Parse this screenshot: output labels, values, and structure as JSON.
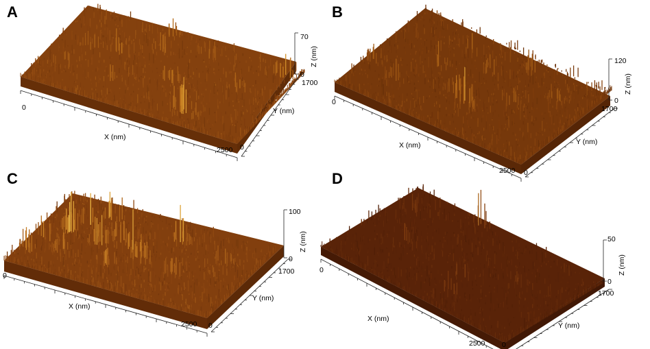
{
  "panels": [
    {
      "label": "A",
      "z_max": "70",
      "z_min": "0",
      "z_label": "Z (nm)",
      "x_label": "X (nm)",
      "x_start": "0",
      "x_end": "2500",
      "y_label": "Y (nm)",
      "y_start": "0",
      "y_end": "1700",
      "surface_colors": [
        "#5a2806",
        "#8c4610",
        "#c47a1e",
        "#f2c24a"
      ],
      "peaks": [
        {
          "u": 0.12,
          "v": 0.3,
          "h": 0.55
        },
        {
          "u": 0.16,
          "v": 0.55,
          "h": 0.35
        },
        {
          "u": 0.28,
          "v": 0.6,
          "h": 0.5
        },
        {
          "u": 0.35,
          "v": 0.25,
          "h": 0.4
        },
        {
          "u": 0.42,
          "v": 0.75,
          "h": 0.35
        },
        {
          "u": 0.55,
          "v": 0.45,
          "h": 0.55
        },
        {
          "u": 0.68,
          "v": 0.2,
          "h": 0.8
        },
        {
          "u": 0.72,
          "v": 0.15,
          "h": 0.95
        },
        {
          "u": 0.82,
          "v": 0.6,
          "h": 0.45
        },
        {
          "u": 0.94,
          "v": 0.9,
          "h": 0.85
        },
        {
          "u": 0.4,
          "v": 0.95,
          "h": 0.4
        },
        {
          "u": 0.6,
          "v": 0.85,
          "h": 0.35
        }
      ]
    },
    {
      "label": "B",
      "z_max": "120",
      "z_min": "0",
      "z_label": "Z (nm)",
      "x_label": "X (nm)",
      "x_start": "0",
      "x_end": "2500",
      "y_label": "Y (nm)",
      "y_start": "0",
      "y_end": "1700",
      "surface_colors": [
        "#4f2205",
        "#7e3c0c",
        "#b66c1a",
        "#f0c44c"
      ],
      "peaks": [
        {
          "u": 0.05,
          "v": 0.35,
          "h": 0.4
        },
        {
          "u": 0.3,
          "v": 0.55,
          "h": 0.45
        },
        {
          "u": 0.45,
          "v": 0.4,
          "h": 0.6
        },
        {
          "u": 0.52,
          "v": 0.35,
          "h": 0.95
        },
        {
          "u": 0.56,
          "v": 0.3,
          "h": 0.75
        },
        {
          "u": 0.5,
          "v": 0.7,
          "h": 0.55
        },
        {
          "u": 0.7,
          "v": 0.5,
          "h": 0.4
        },
        {
          "u": 0.35,
          "v": 0.8,
          "h": 0.5
        },
        {
          "u": 0.85,
          "v": 0.7,
          "h": 0.35
        },
        {
          "u": 0.2,
          "v": 0.25,
          "h": 0.35
        },
        {
          "u": 0.65,
          "v": 0.85,
          "h": 0.4
        }
      ]
    },
    {
      "label": "C",
      "z_max": "100",
      "z_min": "0",
      "z_label": "Z (nm)",
      "x_label": "X (nm)",
      "x_start": "0",
      "x_end": "2500",
      "y_label": "Y (nm)",
      "y_start": "0",
      "y_end": "1700",
      "surface_colors": [
        "#552506",
        "#8a4410",
        "#c67c22",
        "#f4c850"
      ],
      "peaks": [
        {
          "u": 0.08,
          "v": 0.4,
          "h": 0.8
        },
        {
          "u": 0.14,
          "v": 0.55,
          "h": 1.0
        },
        {
          "u": 0.2,
          "v": 0.7,
          "h": 0.95
        },
        {
          "u": 0.25,
          "v": 0.85,
          "h": 1.0
        },
        {
          "u": 0.3,
          "v": 0.5,
          "h": 0.85
        },
        {
          "u": 0.36,
          "v": 0.62,
          "h": 0.75
        },
        {
          "u": 0.45,
          "v": 0.55,
          "h": 0.8
        },
        {
          "u": 0.52,
          "v": 0.45,
          "h": 0.95
        },
        {
          "u": 0.6,
          "v": 0.8,
          "h": 0.9
        },
        {
          "u": 0.18,
          "v": 0.3,
          "h": 0.55
        },
        {
          "u": 0.4,
          "v": 0.3,
          "h": 0.6
        },
        {
          "u": 0.7,
          "v": 0.4,
          "h": 0.4
        },
        {
          "u": 0.05,
          "v": 0.2,
          "h": 0.55
        },
        {
          "u": 0.85,
          "v": 0.7,
          "h": 0.35
        }
      ]
    },
    {
      "label": "D",
      "z_max": "50",
      "z_min": "0",
      "z_label": "Z (nm)",
      "x_label": "X (nm)",
      "x_start": "0",
      "x_end": "2500",
      "y_label": "Y (nm)",
      "y_start": "0",
      "y_end": "1700",
      "surface_colors": [
        "#3d1604",
        "#5e2609",
        "#8b4512",
        "#d89a3a"
      ],
      "peaks": [
        {
          "u": 0.2,
          "v": 0.45,
          "h": 0.55
        },
        {
          "u": 0.36,
          "v": 0.95,
          "h": 0.8
        },
        {
          "u": 0.55,
          "v": 0.4,
          "h": 0.55
        },
        {
          "u": 0.6,
          "v": 0.2,
          "h": 0.5
        },
        {
          "u": 0.1,
          "v": 0.75,
          "h": 0.35
        },
        {
          "u": 0.75,
          "v": 0.6,
          "h": 0.25
        }
      ]
    }
  ]
}
